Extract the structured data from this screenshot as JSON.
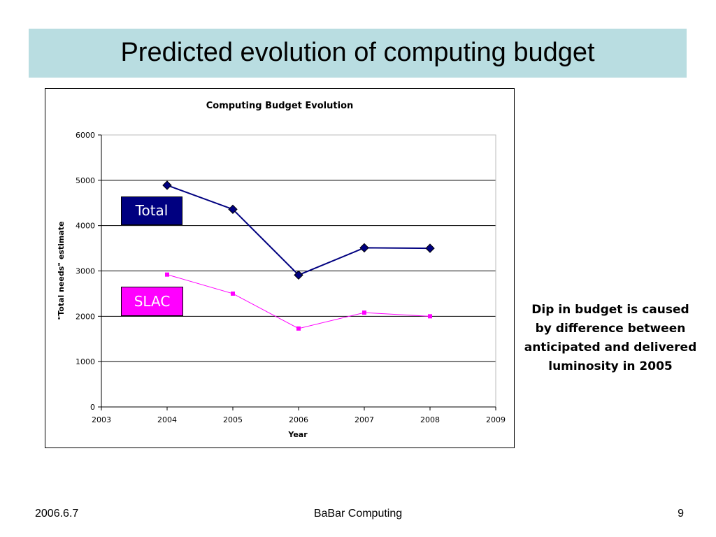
{
  "slide": {
    "title": "Predicted evolution of computing budget",
    "note": "Dip in budget is caused by difference between anticipated and delivered luminosity in 2005",
    "footer_date": "2006.6.7",
    "footer_center": "BaBar Computing",
    "page_number": "9"
  },
  "colors": {
    "title_band": "#b9dde1",
    "total": "#000080",
    "slac": "#ff00ff"
  },
  "chart_data": {
    "type": "line",
    "title": "Computing Budget Evolution",
    "xlabel": "Year",
    "ylabel": "\"Total needs\" estimate",
    "xlim": [
      2003,
      2009
    ],
    "ylim": [
      0,
      6000
    ],
    "xticks": [
      2003,
      2004,
      2005,
      2006,
      2007,
      2008,
      2009
    ],
    "yticks": [
      0,
      1000,
      2000,
      3000,
      4000,
      5000,
      6000
    ],
    "grid": "horizontal",
    "series": [
      {
        "name": "Total",
        "x": [
          2004,
          2005,
          2006,
          2007,
          2008
        ],
        "y": [
          4890,
          4360,
          2910,
          3510,
          3500
        ],
        "marker": "diamond"
      },
      {
        "name": "SLAC",
        "x": [
          2004,
          2005,
          2006,
          2007,
          2008
        ],
        "y": [
          2920,
          2500,
          1730,
          2080,
          2000
        ],
        "marker": "square"
      }
    ]
  }
}
